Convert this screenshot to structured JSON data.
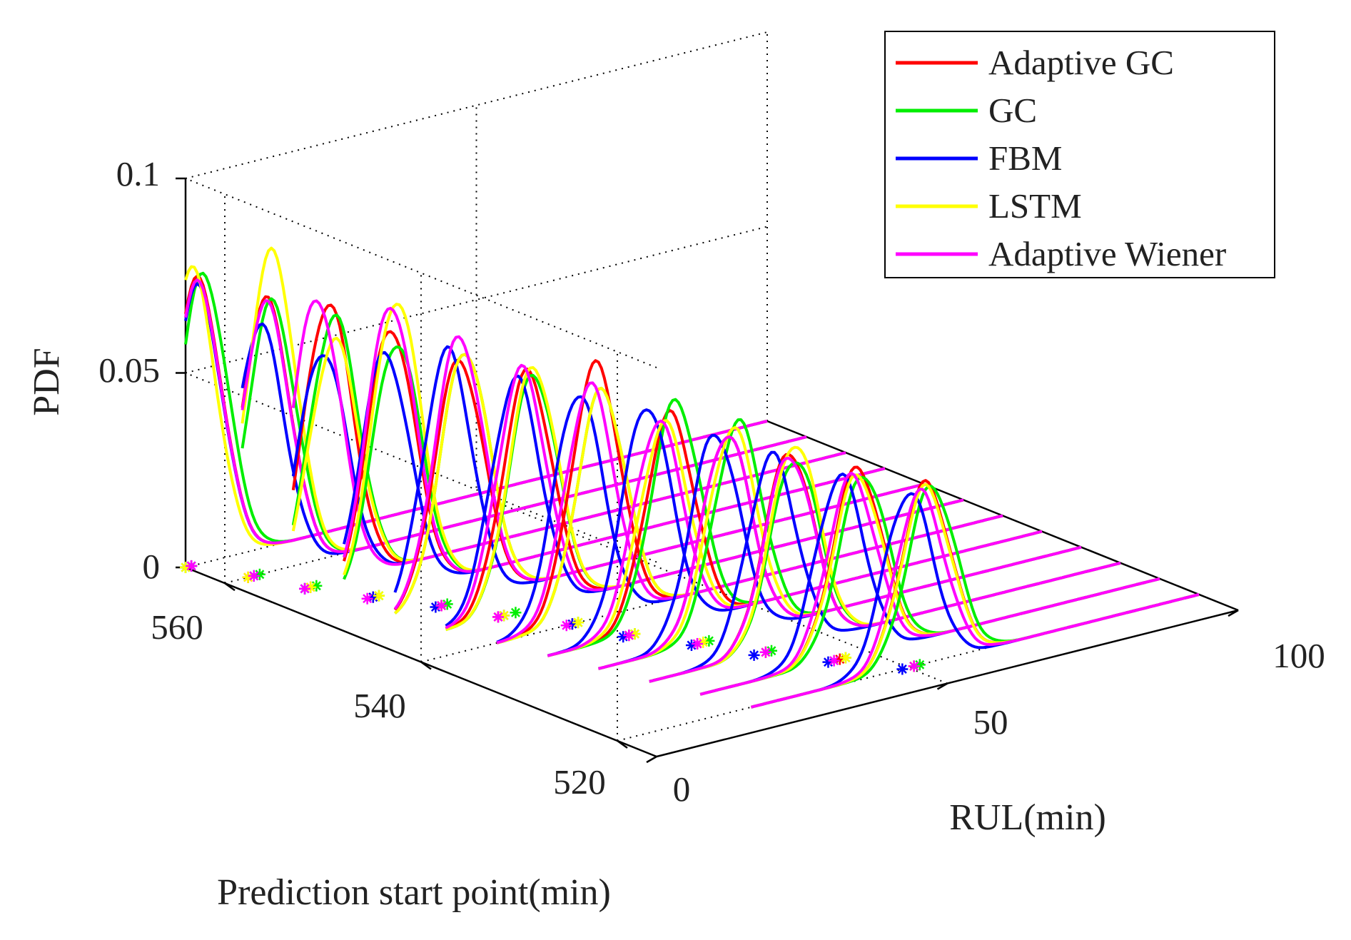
{
  "chart_data": {
    "type": "line",
    "subtype": "3d-waterfall",
    "title": "",
    "xlabel": "RUL(min)",
    "ylabel": "Prediction start point(min)",
    "zlabel": "PDF",
    "xlim": [
      0,
      100
    ],
    "ylim": [
      516,
      564
    ],
    "zlim": [
      0,
      0.1
    ],
    "x_ticks": [
      "0",
      "50",
      "100"
    ],
    "y_ticks": [
      "520",
      "540",
      "560"
    ],
    "z_ticks": [
      "0",
      "0.05",
      "0.1"
    ],
    "grid": true,
    "legend_position": "top-right",
    "prediction_start_points": [
      564,
      560,
      556,
      552,
      548,
      544,
      540,
      536,
      532,
      528,
      524,
      520
    ],
    "series": [
      {
        "name": "Adaptive GC",
        "color": "#ff0000",
        "peak_rul": [
          2,
          7,
          11,
          15,
          20,
          25,
          30,
          36,
          39,
          43,
          48,
          53
        ],
        "peak_pdf": [
          0.073,
          0.07,
          0.072,
          0.068,
          0.062,
          0.061,
          0.065,
          0.054,
          0.052,
          0.05,
          0.048,
          0.046
        ],
        "true_rul": [
          1,
          4,
          8,
          12,
          17,
          20,
          26,
          29,
          34,
          39,
          45,
          51
        ]
      },
      {
        "name": "GC",
        "color": "#00ee00",
        "peak_rul": [
          3,
          8,
          12,
          16,
          21,
          26,
          31,
          37,
          41,
          44,
          49,
          54
        ],
        "peak_pdf": [
          0.074,
          0.069,
          0.068,
          0.064,
          0.064,
          0.06,
          0.058,
          0.057,
          0.054,
          0.048,
          0.046,
          0.045
        ],
        "true_rul": [
          0,
          6,
          9,
          13,
          18,
          23,
          27,
          30,
          36,
          40,
          46,
          52
        ]
      },
      {
        "name": "FBM",
        "color": "#0000ff",
        "peak_rul": [
          2,
          6,
          10,
          14,
          18,
          23,
          27,
          32,
          37,
          40,
          45,
          50
        ],
        "peak_pdf": [
          0.071,
          0.064,
          0.06,
          0.062,
          0.065,
          0.06,
          0.059,
          0.058,
          0.053,
          0.05,
          0.047,
          0.045
        ],
        "true_rul": [
          1,
          5,
          7,
          12,
          16,
          21,
          26,
          28,
          33,
          37,
          43,
          49
        ]
      },
      {
        "name": "LSTM",
        "color": "#ffff00",
        "peak_rul": [
          1,
          8,
          12,
          16,
          21,
          26,
          31,
          35,
          40,
          44,
          48,
          53
        ],
        "peak_pdf": [
          0.076,
          0.082,
          0.062,
          0.075,
          0.064,
          0.062,
          0.058,
          0.052,
          0.053,
          0.052,
          0.046,
          0.045
        ],
        "true_rul": [
          0,
          4,
          8,
          13,
          17,
          21,
          27,
          30,
          35,
          39,
          46,
          51
        ]
      },
      {
        "name": "Adaptive Wiener",
        "color": "#ff00ff",
        "peak_rul": [
          2,
          7,
          9,
          15,
          20,
          24,
          29,
          34,
          39,
          43,
          47,
          52
        ],
        "peak_pdf": [
          0.072,
          0.069,
          0.074,
          0.074,
          0.068,
          0.062,
          0.06,
          0.053,
          0.052,
          0.049,
          0.046,
          0.044
        ],
        "true_rul": [
          1,
          5,
          7,
          11,
          17,
          20,
          25,
          29,
          34,
          39,
          44,
          51
        ]
      }
    ]
  }
}
